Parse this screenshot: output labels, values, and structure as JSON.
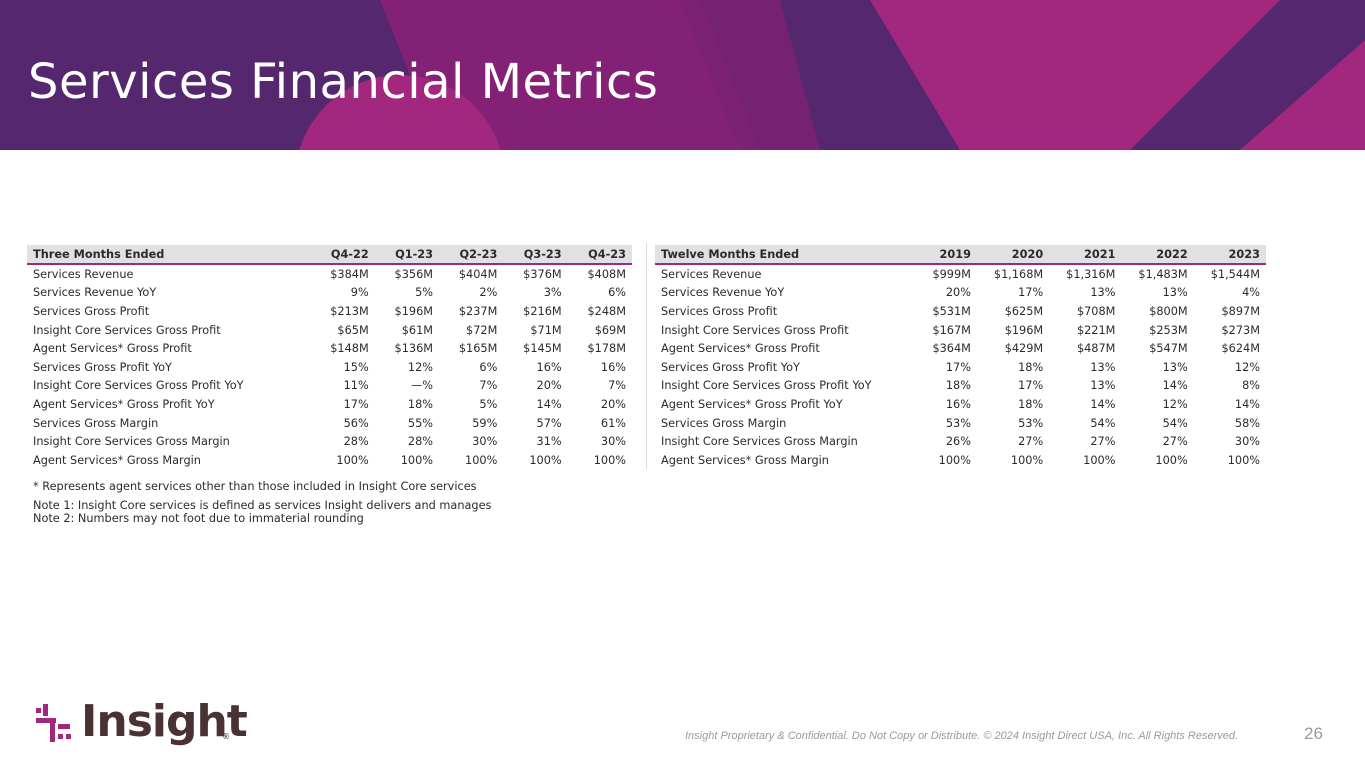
{
  "header": {
    "title": "Services Financial Metrics"
  },
  "colors": {
    "banner": "#55276f",
    "magenta": "#a1277f",
    "header_fill": "#e1e1e1"
  },
  "quarterly": {
    "columns": [
      "Three Months Ended",
      "Q4-22",
      "Q1-23",
      "Q2-23",
      "Q3-23",
      "Q4-23"
    ],
    "rows": [
      [
        "Services Revenue",
        "$384M",
        "$356M",
        "$404M",
        "$376M",
        "$408M"
      ],
      [
        "Services Revenue YoY",
        "9%",
        "5%",
        "2%",
        "3%",
        "6%"
      ],
      [
        "Services Gross Profit",
        "$213M",
        "$196M",
        "$237M",
        "$216M",
        "$248M"
      ],
      [
        "Insight Core Services Gross Profit",
        "$65M",
        "$61M",
        "$72M",
        "$71M",
        "$69M"
      ],
      [
        "Agent Services* Gross Profit",
        "$148M",
        "$136M",
        "$165M",
        "$145M",
        "$178M"
      ],
      [
        "Services Gross Profit YoY",
        "15%",
        "12%",
        "6%",
        "16%",
        "16%"
      ],
      [
        "Insight Core Services Gross Profit YoY",
        "11%",
        "—%",
        "7%",
        "20%",
        "7%"
      ],
      [
        "Agent Services* Gross Profit YoY",
        "17%",
        "18%",
        "5%",
        "14%",
        "20%"
      ],
      [
        "Services Gross Margin",
        "56%",
        "55%",
        "59%",
        "57%",
        "61%"
      ],
      [
        "Insight Core Services Gross Margin",
        "28%",
        "28%",
        "30%",
        "31%",
        "30%"
      ],
      [
        "Agent Services* Gross Margin",
        "100%",
        "100%",
        "100%",
        "100%",
        "100%"
      ]
    ]
  },
  "annual": {
    "columns": [
      "Twelve Months Ended",
      "2019",
      "2020",
      "2021",
      "2022",
      "2023"
    ],
    "rows": [
      [
        "Services Revenue",
        "$999M",
        "$1,168M",
        "$1,316M",
        "$1,483M",
        "$1,544M"
      ],
      [
        "Services Revenue YoY",
        "20%",
        "17%",
        "13%",
        "13%",
        "4%"
      ],
      [
        "Services Gross Profit",
        "$531M",
        "$625M",
        "$708M",
        "$800M",
        "$897M"
      ],
      [
        "Insight Core Services Gross Profit",
        "$167M",
        "$196M",
        "$221M",
        "$253M",
        "$273M"
      ],
      [
        "Agent Services* Gross Profit",
        "$364M",
        "$429M",
        "$487M",
        "$547M",
        "$624M"
      ],
      [
        "Services Gross Profit YoY",
        "17%",
        "18%",
        "13%",
        "13%",
        "12%"
      ],
      [
        "Insight Core Services Gross Profit YoY",
        "18%",
        "17%",
        "13%",
        "14%",
        "8%"
      ],
      [
        "Agent Services* Gross Profit YoY",
        "16%",
        "18%",
        "14%",
        "12%",
        "14%"
      ],
      [
        "Services Gross Margin",
        "53%",
        "53%",
        "54%",
        "54%",
        "58%"
      ],
      [
        "Insight Core Services Gross Margin",
        "26%",
        "27%",
        "27%",
        "27%",
        "30%"
      ],
      [
        "Agent Services* Gross Margin",
        "100%",
        "100%",
        "100%",
        "100%",
        "100%"
      ]
    ]
  },
  "notes": {
    "asterisk": "* Represents agent services other than those included in Insight Core services",
    "note1": "Note 1: Insight Core services is defined as services Insight delivers and manages",
    "note2": "Note 2: Numbers may not foot due to immaterial rounding"
  },
  "footer": {
    "confidential": "Insight Proprietary & Confidential. Do Not Copy or Distribute. © 2024 Insight Direct USA, Inc. All Rights Reserved.",
    "page_number": "26"
  },
  "logo": {
    "wordmark": "Insight",
    "registered": "®"
  }
}
